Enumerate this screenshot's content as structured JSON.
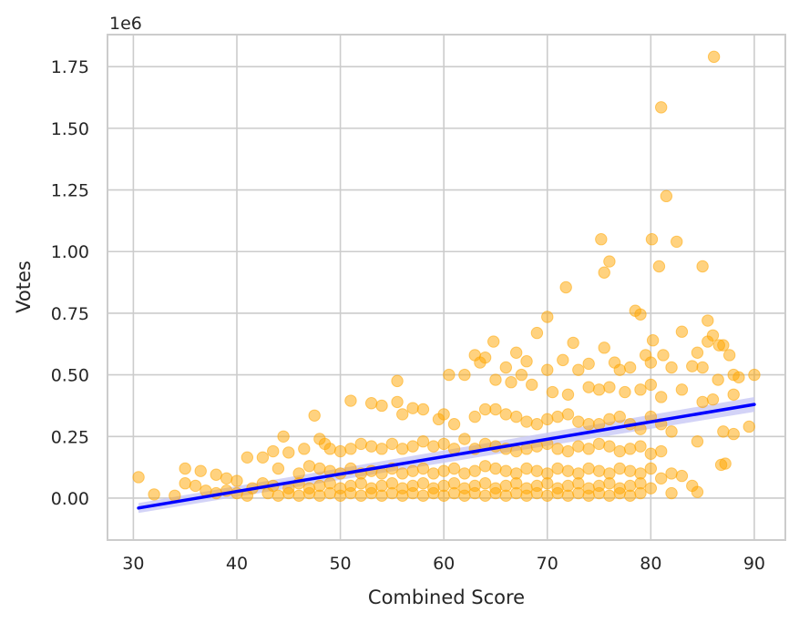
{
  "chart_data": {
    "type": "scatter",
    "xlabel": "Combined Score",
    "ylabel": "Votes",
    "y_offset_label": "1e6",
    "xlim": [
      27.5,
      93
    ],
    "ylim": [
      -0.17,
      1.88
    ],
    "xticks": [
      30,
      40,
      50,
      60,
      70,
      80,
      90
    ],
    "xtick_labels": [
      "30",
      "40",
      "50",
      "60",
      "70",
      "80",
      "90"
    ],
    "yticks": [
      0,
      0.25,
      0.5,
      0.75,
      1.0,
      1.25,
      1.5,
      1.75
    ],
    "ytick_labels": [
      "0.00",
      "0.25",
      "0.50",
      "0.75",
      "1.00",
      "1.25",
      "1.50",
      "1.75"
    ],
    "grid": true,
    "point_color": "#ffa500",
    "regression": {
      "color": "#0000ff",
      "x": [
        30.5,
        90
      ],
      "y": [
        -0.04,
        0.38
      ],
      "ci_upper": [
        -0.02,
        0.41
      ],
      "ci_lower": [
        -0.06,
        0.35
      ],
      "ci_color": "#c8c8f5"
    },
    "points": [
      [
        86.1,
        1.79
      ],
      [
        81,
        1.585
      ],
      [
        81.5,
        1.225
      ],
      [
        75.2,
        1.05
      ],
      [
        80.1,
        1.05
      ],
      [
        82.5,
        1.04
      ],
      [
        80.8,
        0.94
      ],
      [
        85,
        0.94
      ],
      [
        75.5,
        0.915
      ],
      [
        76,
        0.96
      ],
      [
        71.8,
        0.855
      ],
      [
        78.5,
        0.76
      ],
      [
        79,
        0.745
      ],
      [
        70,
        0.735
      ],
      [
        85.5,
        0.72
      ],
      [
        86,
        0.66
      ],
      [
        87,
        0.62
      ],
      [
        83,
        0.675
      ],
      [
        80.2,
        0.64
      ],
      [
        85.5,
        0.635
      ],
      [
        75.5,
        0.61
      ],
      [
        72.5,
        0.63
      ],
      [
        67,
        0.59
      ],
      [
        68,
        0.555
      ],
      [
        74,
        0.545
      ],
      [
        76.5,
        0.55
      ],
      [
        79.5,
        0.58
      ],
      [
        81.2,
        0.58
      ],
      [
        84.5,
        0.59
      ],
      [
        86.6,
        0.62
      ],
      [
        87.6,
        0.58
      ],
      [
        64.8,
        0.635
      ],
      [
        69,
        0.67
      ],
      [
        63,
        0.58
      ],
      [
        63.5,
        0.55
      ],
      [
        64,
        0.57
      ],
      [
        66,
        0.53
      ],
      [
        67.5,
        0.5
      ],
      [
        70,
        0.52
      ],
      [
        71.5,
        0.56
      ],
      [
        73,
        0.52
      ],
      [
        77,
        0.52
      ],
      [
        78,
        0.53
      ],
      [
        80,
        0.55
      ],
      [
        82,
        0.53
      ],
      [
        84,
        0.535
      ],
      [
        85,
        0.53
      ],
      [
        86.5,
        0.48
      ],
      [
        88,
        0.5
      ],
      [
        88.5,
        0.49
      ],
      [
        90,
        0.5
      ],
      [
        60.5,
        0.5
      ],
      [
        62,
        0.5
      ],
      [
        65,
        0.48
      ],
      [
        66.5,
        0.47
      ],
      [
        68.5,
        0.46
      ],
      [
        70.5,
        0.43
      ],
      [
        72,
        0.42
      ],
      [
        74,
        0.45
      ],
      [
        75,
        0.44
      ],
      [
        76,
        0.45
      ],
      [
        77.5,
        0.43
      ],
      [
        79,
        0.44
      ],
      [
        80,
        0.46
      ],
      [
        81,
        0.41
      ],
      [
        83,
        0.44
      ],
      [
        85,
        0.39
      ],
      [
        86,
        0.4
      ],
      [
        88,
        0.42
      ],
      [
        89.5,
        0.29
      ],
      [
        55.5,
        0.475
      ],
      [
        55.5,
        0.39
      ],
      [
        54,
        0.375
      ],
      [
        53,
        0.385
      ],
      [
        51,
        0.395
      ],
      [
        57,
        0.365
      ],
      [
        58,
        0.36
      ],
      [
        56,
        0.34
      ],
      [
        59.5,
        0.32
      ],
      [
        60,
        0.34
      ],
      [
        61,
        0.3
      ],
      [
        63,
        0.33
      ],
      [
        64,
        0.36
      ],
      [
        65,
        0.36
      ],
      [
        66,
        0.34
      ],
      [
        67,
        0.33
      ],
      [
        68,
        0.31
      ],
      [
        69,
        0.3
      ],
      [
        70,
        0.32
      ],
      [
        71,
        0.33
      ],
      [
        72,
        0.34
      ],
      [
        73,
        0.31
      ],
      [
        74,
        0.3
      ],
      [
        75,
        0.3
      ],
      [
        76,
        0.32
      ],
      [
        77,
        0.33
      ],
      [
        78,
        0.3
      ],
      [
        79,
        0.28
      ],
      [
        80,
        0.33
      ],
      [
        81,
        0.3
      ],
      [
        82,
        0.27
      ],
      [
        84.5,
        0.23
      ],
      [
        87,
        0.27
      ],
      [
        88,
        0.26
      ],
      [
        87.2,
        0.14
      ],
      [
        86.8,
        0.135
      ],
      [
        47.5,
        0.335
      ],
      [
        46.5,
        0.2
      ],
      [
        48,
        0.24
      ],
      [
        48.5,
        0.22
      ],
      [
        49,
        0.2
      ],
      [
        50,
        0.19
      ],
      [
        51,
        0.2
      ],
      [
        52,
        0.22
      ],
      [
        53,
        0.21
      ],
      [
        54,
        0.2
      ],
      [
        55,
        0.22
      ],
      [
        56,
        0.2
      ],
      [
        57,
        0.21
      ],
      [
        58,
        0.23
      ],
      [
        59,
        0.21
      ],
      [
        60,
        0.22
      ],
      [
        61,
        0.2
      ],
      [
        62,
        0.24
      ],
      [
        63,
        0.2
      ],
      [
        64,
        0.22
      ],
      [
        65,
        0.21
      ],
      [
        66,
        0.2
      ],
      [
        67,
        0.19
      ],
      [
        68,
        0.2
      ],
      [
        69,
        0.21
      ],
      [
        70,
        0.22
      ],
      [
        71,
        0.2
      ],
      [
        72,
        0.19
      ],
      [
        73,
        0.21
      ],
      [
        74,
        0.2
      ],
      [
        75,
        0.22
      ],
      [
        76,
        0.21
      ],
      [
        77,
        0.19
      ],
      [
        78,
        0.2
      ],
      [
        79,
        0.21
      ],
      [
        80,
        0.18
      ],
      [
        81,
        0.19
      ],
      [
        41,
        0.165
      ],
      [
        42.5,
        0.165
      ],
      [
        44.5,
        0.25
      ],
      [
        45,
        0.185
      ],
      [
        43.5,
        0.19
      ],
      [
        44,
        0.12
      ],
      [
        46,
        0.1
      ],
      [
        47,
        0.13
      ],
      [
        48,
        0.12
      ],
      [
        49,
        0.11
      ],
      [
        50,
        0.1
      ],
      [
        51,
        0.12
      ],
      [
        52,
        0.1
      ],
      [
        53,
        0.11
      ],
      [
        54,
        0.1
      ],
      [
        55,
        0.12
      ],
      [
        56,
        0.1
      ],
      [
        57,
        0.11
      ],
      [
        58,
        0.12
      ],
      [
        59,
        0.1
      ],
      [
        60,
        0.11
      ],
      [
        61,
        0.12
      ],
      [
        62,
        0.1
      ],
      [
        63,
        0.11
      ],
      [
        64,
        0.13
      ],
      [
        65,
        0.12
      ],
      [
        66,
        0.11
      ],
      [
        67,
        0.1
      ],
      [
        68,
        0.12
      ],
      [
        69,
        0.11
      ],
      [
        70,
        0.1
      ],
      [
        71,
        0.12
      ],
      [
        72,
        0.11
      ],
      [
        73,
        0.1
      ],
      [
        74,
        0.12
      ],
      [
        75,
        0.11
      ],
      [
        76,
        0.1
      ],
      [
        77,
        0.12
      ],
      [
        78,
        0.11
      ],
      [
        79,
        0.1
      ],
      [
        80,
        0.12
      ],
      [
        81,
        0.08
      ],
      [
        82,
        0.1
      ],
      [
        83,
        0.09
      ],
      [
        84,
        0.05
      ],
      [
        82,
        0.02
      ],
      [
        84.5,
        0.025
      ],
      [
        35,
        0.12
      ],
      [
        36.5,
        0.11
      ],
      [
        38,
        0.095
      ],
      [
        39,
        0.08
      ],
      [
        40,
        0.07
      ],
      [
        41.5,
        0.04
      ],
      [
        42.5,
        0.06
      ],
      [
        43.5,
        0.05
      ],
      [
        45,
        0.04
      ],
      [
        46,
        0.06
      ],
      [
        47,
        0.04
      ],
      [
        48,
        0.05
      ],
      [
        49,
        0.06
      ],
      [
        50,
        0.04
      ],
      [
        51,
        0.05
      ],
      [
        52,
        0.06
      ],
      [
        53,
        0.04
      ],
      [
        54,
        0.05
      ],
      [
        55,
        0.06
      ],
      [
        56,
        0.04
      ],
      [
        57,
        0.05
      ],
      [
        58,
        0.06
      ],
      [
        59,
        0.04
      ],
      [
        60,
        0.05
      ],
      [
        61,
        0.06
      ],
      [
        62,
        0.04
      ],
      [
        63,
        0.05
      ],
      [
        64,
        0.06
      ],
      [
        65,
        0.04
      ],
      [
        66,
        0.05
      ],
      [
        67,
        0.06
      ],
      [
        68,
        0.04
      ],
      [
        69,
        0.05
      ],
      [
        70,
        0.06
      ],
      [
        71,
        0.04
      ],
      [
        72,
        0.05
      ],
      [
        73,
        0.06
      ],
      [
        74,
        0.04
      ],
      [
        75,
        0.05
      ],
      [
        76,
        0.06
      ],
      [
        77,
        0.04
      ],
      [
        78,
        0.05
      ],
      [
        79,
        0.06
      ],
      [
        80,
        0.04
      ],
      [
        30.5,
        0.085
      ],
      [
        32,
        0.015
      ],
      [
        34,
        0.01
      ],
      [
        35,
        0.06
      ],
      [
        36,
        0.05
      ],
      [
        37,
        0.03
      ],
      [
        38,
        0.02
      ],
      [
        39,
        0.03
      ],
      [
        40,
        0.02
      ],
      [
        41,
        0.01
      ],
      [
        43,
        0.02
      ],
      [
        44,
        0.01
      ],
      [
        45,
        0.02
      ],
      [
        46,
        0.01
      ],
      [
        47,
        0.02
      ],
      [
        48,
        0.01
      ],
      [
        49,
        0.02
      ],
      [
        50,
        0.01
      ],
      [
        51,
        0.02
      ],
      [
        52,
        0.01
      ],
      [
        53,
        0.02
      ],
      [
        54,
        0.01
      ],
      [
        55,
        0.02
      ],
      [
        56,
        0.01
      ],
      [
        57,
        0.02
      ],
      [
        58,
        0.01
      ],
      [
        59,
        0.02
      ],
      [
        60,
        0.01
      ],
      [
        61,
        0.02
      ],
      [
        62,
        0.01
      ],
      [
        63,
        0.02
      ],
      [
        64,
        0.01
      ],
      [
        65,
        0.02
      ],
      [
        66,
        0.01
      ],
      [
        67,
        0.02
      ],
      [
        68,
        0.01
      ],
      [
        69,
        0.02
      ],
      [
        70,
        0.01
      ],
      [
        71,
        0.02
      ],
      [
        72,
        0.01
      ],
      [
        73,
        0.02
      ],
      [
        74,
        0.01
      ],
      [
        75,
        0.02
      ],
      [
        76,
        0.01
      ],
      [
        77,
        0.02
      ],
      [
        78,
        0.01
      ],
      [
        79,
        0.02
      ]
    ]
  }
}
